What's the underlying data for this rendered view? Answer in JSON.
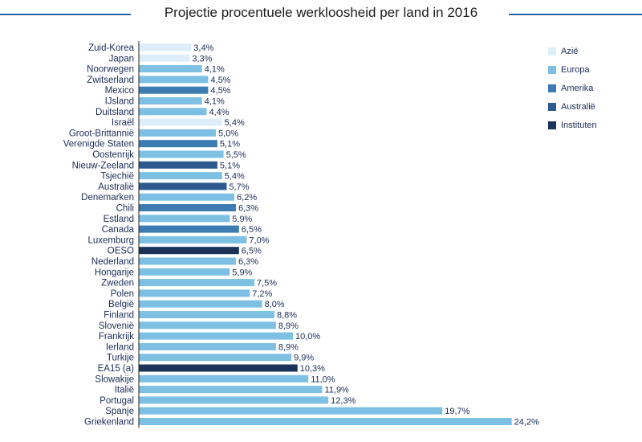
{
  "chart_data": {
    "type": "bar",
    "orientation": "horizontal",
    "title": "Projectie procentuele werkloosheid per land in 2016",
    "xlim": [
      0,
      25
    ],
    "legend_position": "top-right",
    "groups": [
      {
        "name": "Azië",
        "color": "#ddeefa"
      },
      {
        "name": "Europa",
        "color": "#7dc0e3"
      },
      {
        "name": "Amerika",
        "color": "#3d7cb3"
      },
      {
        "name": "Australië",
        "color": "#2c5a8e"
      },
      {
        "name": "Instituten",
        "color": "#1b3359"
      }
    ],
    "categories": [
      "Zuid-Korea",
      "Japan",
      "Noorwegen",
      "Zwitserland",
      "Mexico",
      "IJsland",
      "Duitsland",
      "Israël",
      "Groot-Brittannië",
      "Verenigde Staten",
      "Oostenrijk",
      "Nieuw-Zeeland",
      "Tsjechië",
      "Australië",
      "Denemarken",
      "Chili",
      "Estland",
      "Canada",
      "Luxemburg",
      "OESO",
      "Nederland",
      "Hongarije",
      "Zweden",
      "Polen",
      "België",
      "Finland",
      "Slovenië",
      "Frankrijk",
      "Ierland",
      "Turkije",
      "EA15 (a)",
      "Slowakije",
      "Italië",
      "Portugal",
      "Spanje",
      "Griekenland"
    ],
    "values": [
      3.4,
      3.3,
      4.1,
      4.5,
      4.5,
      4.1,
      4.4,
      5.4,
      5.0,
      5.1,
      5.5,
      5.1,
      5.4,
      5.7,
      6.2,
      6.3,
      5.9,
      6.5,
      7.0,
      6.5,
      6.3,
      5.9,
      7.5,
      7.2,
      8.0,
      8.8,
      8.9,
      10.0,
      8.9,
      9.9,
      10.3,
      11.0,
      11.9,
      12.3,
      19.7,
      24.2
    ],
    "value_labels": [
      "3,4%",
      "3,3%",
      "4,1%",
      "4,5%",
      "4,5%",
      "4,1%",
      "4,4%",
      "5,4%",
      "5,0%",
      "5,1%",
      "5,5%",
      "5,1%",
      "5,4%",
      "5,7%",
      "6,2%",
      "6,3%",
      "5,9%",
      "6,5%",
      "7,0%",
      "6,5%",
      "6,3%",
      "5,9%",
      "7,5%",
      "7,2%",
      "8,0%",
      "8,8%",
      "8,9%",
      "10,0%",
      "8,9%",
      "9,9%",
      "10,3%",
      "11,0%",
      "11,9%",
      "12,3%",
      "19,7%",
      "24,2%"
    ],
    "bar_groups": [
      "Azië",
      "Azië",
      "Europa",
      "Europa",
      "Amerika",
      "Europa",
      "Europa",
      "Azië",
      "Europa",
      "Amerika",
      "Europa",
      "Australië",
      "Europa",
      "Australië",
      "Europa",
      "Amerika",
      "Europa",
      "Amerika",
      "Europa",
      "Instituten",
      "Europa",
      "Europa",
      "Europa",
      "Europa",
      "Europa",
      "Europa",
      "Europa",
      "Europa",
      "Europa",
      "Europa",
      "Instituten",
      "Europa",
      "Europa",
      "Europa",
      "Europa",
      "Europa"
    ]
  }
}
